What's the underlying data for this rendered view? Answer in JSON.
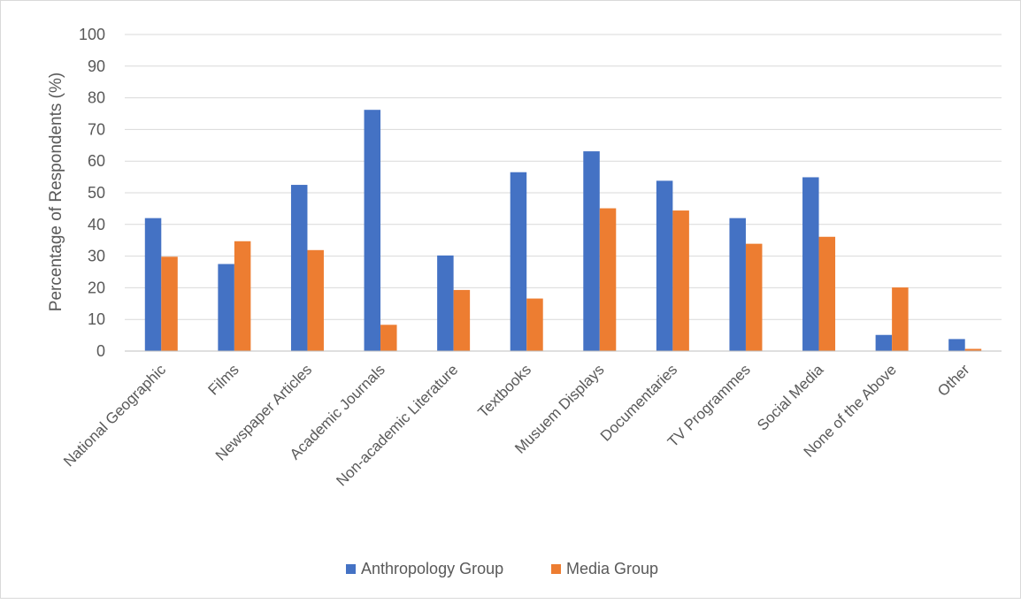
{
  "chart_data": {
    "type": "bar",
    "title": "",
    "xlabel": "",
    "ylabel": "Percentage of Respondents (%)",
    "ylim": [
      0,
      100
    ],
    "ytick_step": 10,
    "grid": true,
    "legend_position": "bottom",
    "categories": [
      "National Geographic",
      "Films",
      "Newspaper Articles",
      "Academic Journals",
      "Non-academic Literature",
      "Textbooks",
      "Musuem Displays",
      "Documentaries",
      "TV Programmes",
      "Social Media",
      "None of the Above",
      "Other"
    ],
    "series": [
      {
        "name": "Anthropology Group",
        "color": "#4472C4",
        "values": [
          42,
          27.5,
          52.5,
          76.2,
          30.2,
          56.5,
          63.1,
          53.8,
          42,
          54.9,
          5.1,
          3.8
        ]
      },
      {
        "name": "Media Group",
        "color": "#ED7D31",
        "values": [
          29.8,
          34.7,
          31.9,
          8.3,
          19.3,
          16.6,
          45.1,
          44.4,
          33.9,
          36.1,
          20.1,
          0.7
        ]
      }
    ]
  }
}
